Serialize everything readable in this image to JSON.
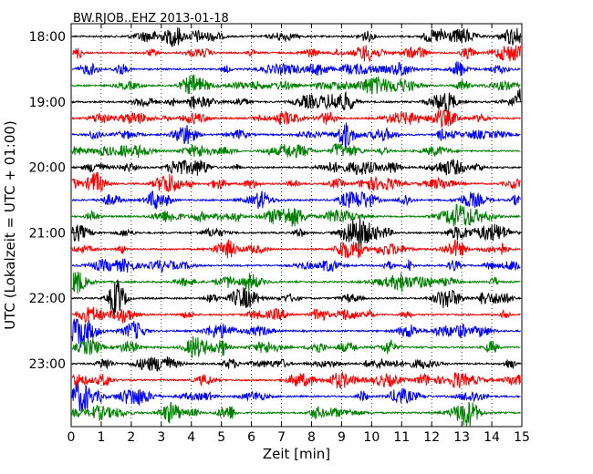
{
  "chart_data": {
    "type": "line",
    "title": "BW.RJOB..EHZ 2013-01-18",
    "xlabel": "Zeit  [min]",
    "ylabel": "UTC (Lokalzeit = UTC + 01:00)",
    "x_range": [
      0,
      15
    ],
    "x_ticks": [
      "0",
      "1",
      "2",
      "3",
      "4",
      "5",
      "6",
      "7",
      "8",
      "9",
      "10",
      "11",
      "12",
      "13",
      "14",
      "15"
    ],
    "y_tick_labels": [
      "18:00",
      "19:00",
      "20:00",
      "21:00",
      "22:00",
      "23:00"
    ],
    "trace_interval_min": 15,
    "trace_start": "18:00",
    "trace_count": 24,
    "colors": [
      "#000000",
      "#ff0000",
      "#0000ff",
      "#008000"
    ],
    "grid": true,
    "grid_axis": "x",
    "grid_style": "dotted",
    "legend": "none"
  }
}
